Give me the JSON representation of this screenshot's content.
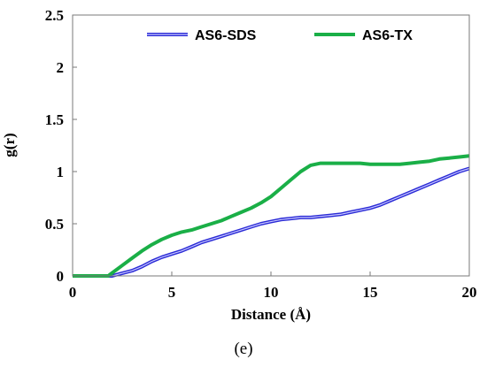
{
  "panel_label": "(e)",
  "chart_data": {
    "type": "line",
    "xlabel": "Distance (Å)",
    "ylabel": "g(r)",
    "xlim": [
      0,
      20
    ],
    "ylim": [
      0,
      2.5
    ],
    "x_ticks": [
      "0",
      "5",
      "10",
      "15",
      "20"
    ],
    "y_ticks": [
      "0",
      "0.5",
      "1",
      "1.5",
      "2",
      "2.5"
    ],
    "legend_position": "top",
    "grid": false,
    "series": [
      {
        "name": "AS6-SDS",
        "color": "#2a2ad6",
        "x": [
          0,
          2.0,
          2.4,
          3,
          3.5,
          4,
          4.5,
          5,
          5.5,
          6,
          6.5,
          7,
          7.5,
          8,
          8.5,
          9,
          9.5,
          10,
          10.5,
          11,
          11.5,
          12,
          12.5,
          13,
          13.5,
          14,
          14.5,
          15,
          15.5,
          16,
          16.5,
          17,
          17.5,
          18,
          18.5,
          19,
          19.5,
          20
        ],
        "y": [
          0,
          0,
          0.02,
          0.05,
          0.09,
          0.14,
          0.18,
          0.21,
          0.24,
          0.28,
          0.32,
          0.35,
          0.38,
          0.41,
          0.44,
          0.47,
          0.5,
          0.52,
          0.54,
          0.55,
          0.56,
          0.56,
          0.57,
          0.58,
          0.59,
          0.61,
          0.63,
          0.65,
          0.68,
          0.72,
          0.76,
          0.8,
          0.84,
          0.88,
          0.92,
          0.96,
          1.0,
          1.03
        ]
      },
      {
        "name": "AS6-TX",
        "color": "#1aaf47",
        "x": [
          0,
          1.8,
          2.0,
          2.5,
          3,
          3.5,
          4,
          4.5,
          5,
          5.5,
          6,
          6.5,
          7,
          7.5,
          8,
          8.5,
          9,
          9.5,
          10,
          10.5,
          11,
          11.5,
          12,
          12.5,
          13,
          13.5,
          14,
          14.5,
          15,
          15.5,
          16,
          16.5,
          17,
          17.5,
          18,
          18.5,
          19,
          19.5,
          20
        ],
        "y": [
          0,
          0,
          0.03,
          0.1,
          0.17,
          0.24,
          0.3,
          0.35,
          0.39,
          0.42,
          0.44,
          0.47,
          0.5,
          0.53,
          0.57,
          0.61,
          0.65,
          0.7,
          0.76,
          0.84,
          0.92,
          1.0,
          1.06,
          1.08,
          1.08,
          1.08,
          1.08,
          1.08,
          1.07,
          1.07,
          1.07,
          1.07,
          1.08,
          1.09,
          1.1,
          1.12,
          1.13,
          1.14,
          1.15
        ]
      }
    ]
  }
}
